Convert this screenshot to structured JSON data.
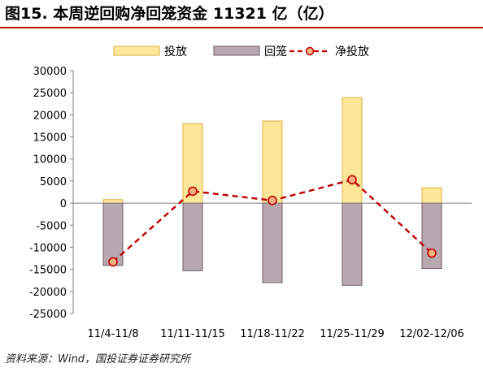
{
  "title": "图15. 本周逆回购净回笼资金 11321 亿（亿）",
  "source": "资料来源：Wind，国投证券证券研究所",
  "colors": {
    "bar_invest_fill": "#ffe699",
    "bar_invest_stroke": "#e0b040",
    "bar_recall_fill": "#b8a8b0",
    "bar_recall_stroke": "#6e5a66",
    "line_net": "#c00000",
    "marker_fill": "#f4b183",
    "title_rule": "#c00000"
  },
  "chart_data": {
    "type": "bar",
    "title": "",
    "xlabel": "",
    "ylabel": "",
    "categories": [
      "11/4-11/8",
      "11/11-11/15",
      "11/18-11/22",
      "11/25-11/29",
      "12/02-12/06"
    ],
    "series": [
      {
        "name": "投放",
        "type": "bar",
        "values": [
          800,
          18000,
          18600,
          23900,
          3500
        ]
      },
      {
        "name": "回笼",
        "type": "bar",
        "values": [
          -14100,
          -15300,
          -18000,
          -18600,
          -14800
        ]
      },
      {
        "name": "净投放",
        "type": "line",
        "style": "dashed",
        "values": [
          -13300,
          2700,
          600,
          5300,
          -11321
        ]
      }
    ],
    "ylim": [
      -25000,
      30000
    ],
    "yticks": [
      30000,
      25000,
      20000,
      15000,
      10000,
      5000,
      0,
      -5000,
      -10000,
      -15000,
      -20000,
      -25000
    ],
    "grid": false,
    "legend_position": "top"
  }
}
